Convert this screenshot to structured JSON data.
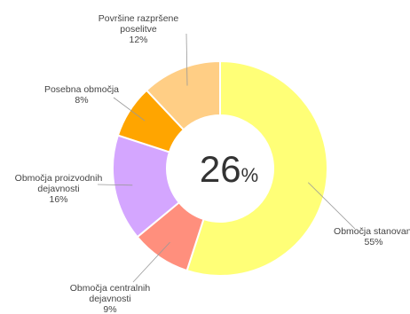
{
  "chart_data": {
    "type": "pie",
    "donut": true,
    "center_label": {
      "value": "26",
      "unit": "%"
    },
    "slices": [
      {
        "label_lines": [
          "Območja stanovanj"
        ],
        "value_label": "55%",
        "value": 55,
        "color": "#FFFF77"
      },
      {
        "label_lines": [
          "Območja centralnih",
          "dejavnosti"
        ],
        "value_label": "9%",
        "value": 9,
        "color": "#FF8F7D"
      },
      {
        "label_lines": [
          "Območja proizvodnih",
          "dejavnosti"
        ],
        "value_label": "16%",
        "value": 16,
        "color": "#D4A6FF"
      },
      {
        "label_lines": [
          "Posebna območja"
        ],
        "value_label": "8%",
        "value": 8,
        "color": "#FFA500"
      },
      {
        "label_lines": [
          "Površine razpršene",
          "poselitve"
        ],
        "value_label": "12%",
        "value": 12,
        "color": "#FFCE85"
      }
    ]
  }
}
